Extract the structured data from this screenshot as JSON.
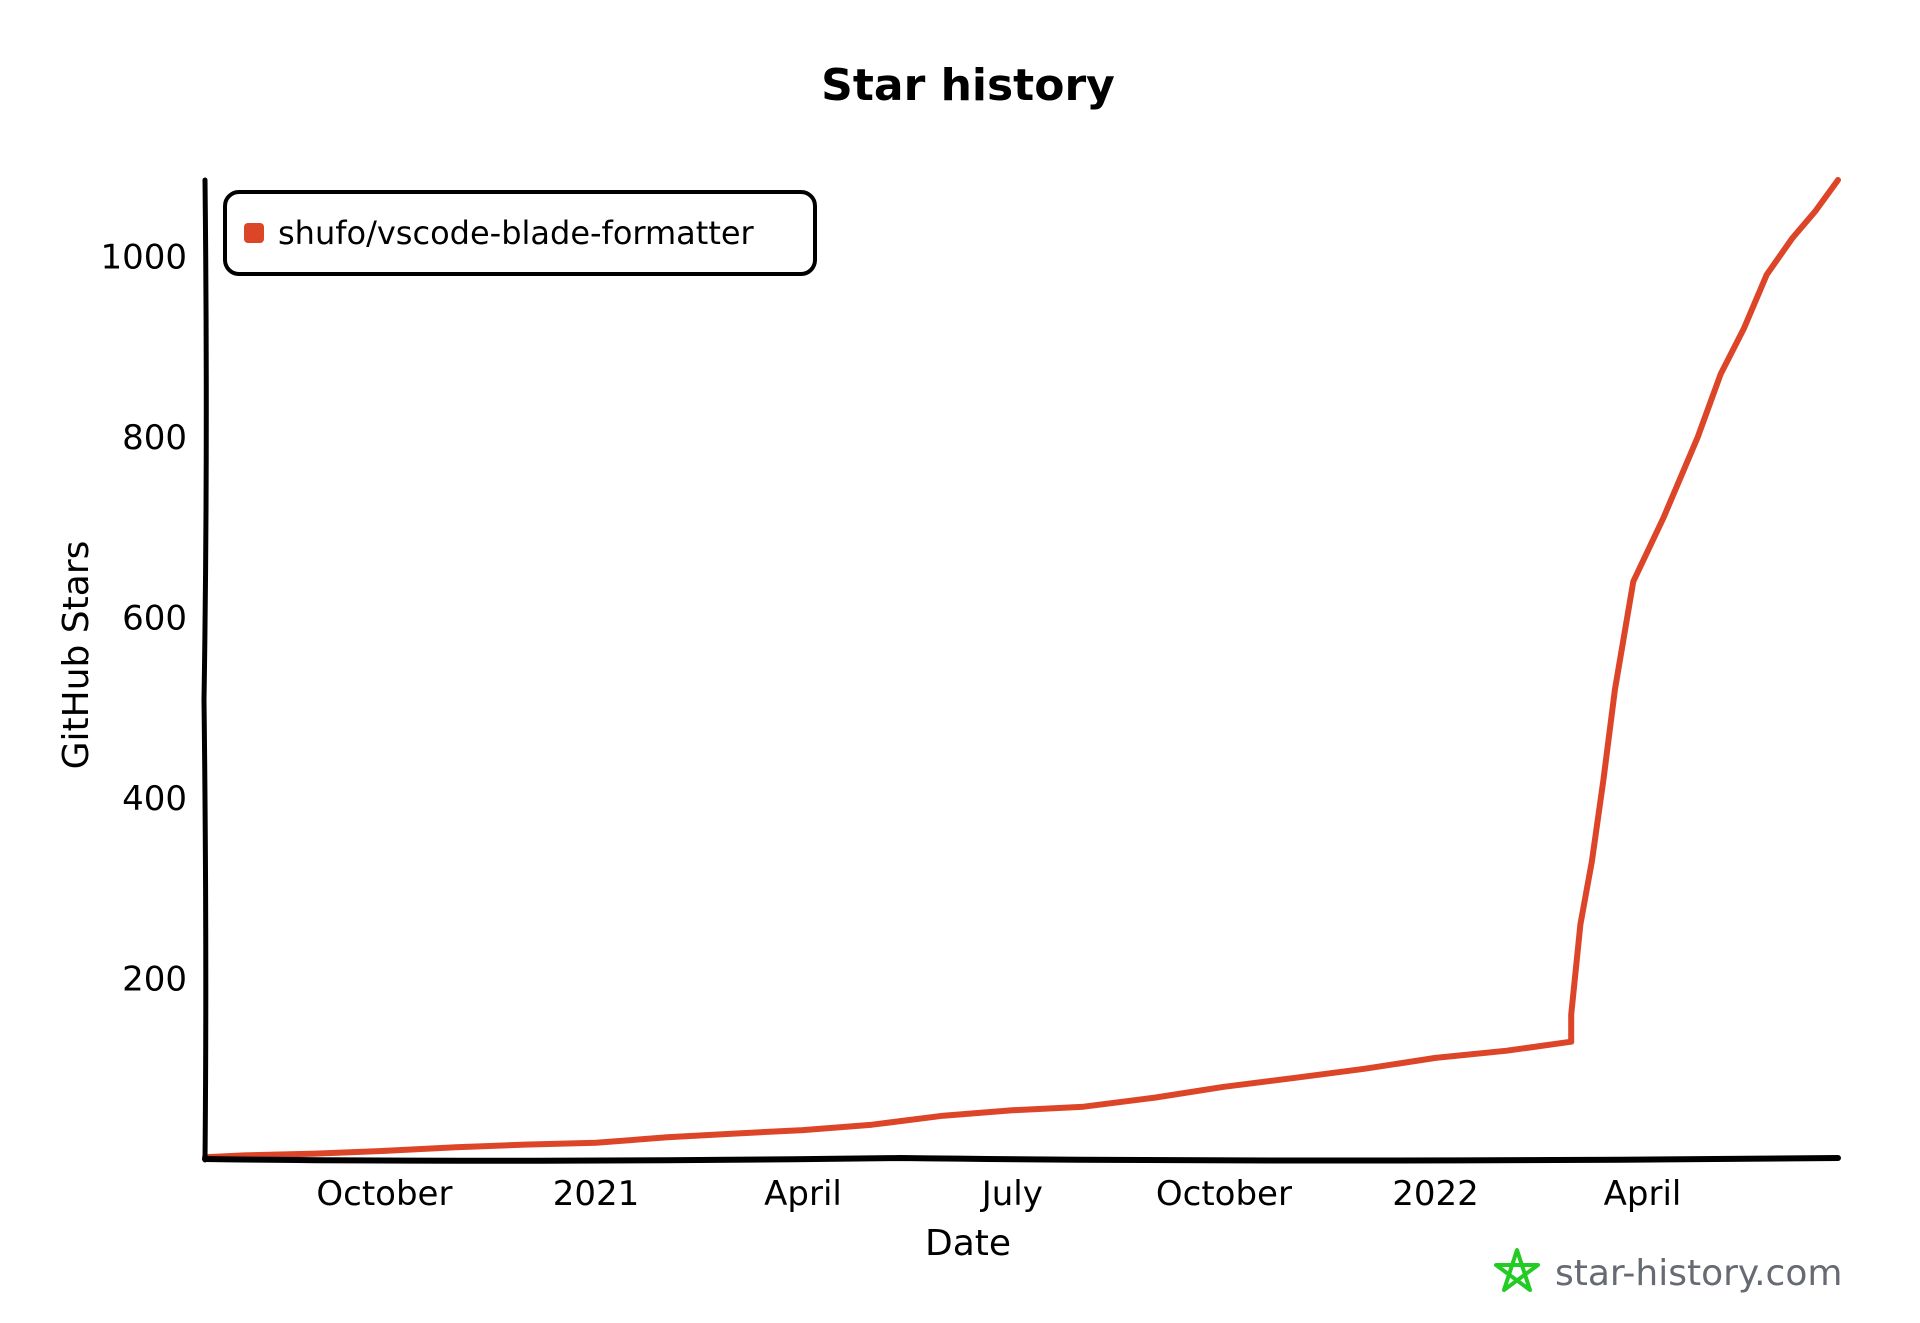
{
  "chart_data": {
    "type": "line",
    "title": "Star history",
    "xlabel": "Date",
    "ylabel": "GitHub Stars",
    "x_ticks": [
      "October",
      "2021",
      "April",
      "July",
      "October",
      "2022",
      "April"
    ],
    "y_ticks": [
      "200",
      "400",
      "600",
      "800",
      "1000"
    ],
    "ylim": [
      0,
      1085
    ],
    "xlim": [
      "2020-07-15",
      "2022-06-25"
    ],
    "grid": false,
    "legend_position": "top-left",
    "series": [
      {
        "name": "shufo/vscode-blade-formatter",
        "color": "#dd4528",
        "x": [
          "2020-07-15",
          "2020-08-01",
          "2020-09-01",
          "2020-10-01",
          "2020-11-01",
          "2020-12-01",
          "2021-01-01",
          "2021-02-01",
          "2021-03-01",
          "2021-04-01",
          "2021-05-01",
          "2021-06-01",
          "2021-07-01",
          "2021-08-01",
          "2021-09-01",
          "2021-10-01",
          "2021-11-01",
          "2021-12-01",
          "2022-01-01",
          "2022-02-01",
          "2022-03-01",
          "2022-03-01",
          "2022-03-05",
          "2022-03-10",
          "2022-03-15",
          "2022-03-20",
          "2022-03-28",
          "2022-04-10",
          "2022-04-25",
          "2022-05-05",
          "2022-05-15",
          "2022-05-25",
          "2022-06-05",
          "2022-06-15",
          "2022-06-25"
        ],
        "y": [
          2,
          4,
          6,
          9,
          13,
          16,
          18,
          24,
          28,
          32,
          38,
          48,
          54,
          58,
          68,
          80,
          90,
          100,
          112,
          120,
          130,
          160,
          260,
          330,
          420,
          520,
          640,
          710,
          800,
          870,
          920,
          980,
          1020,
          1050,
          1085
        ]
      }
    ]
  },
  "brand": {
    "text": "star-history.com",
    "icon": "star-icon",
    "icon_color": "#22cc22"
  }
}
